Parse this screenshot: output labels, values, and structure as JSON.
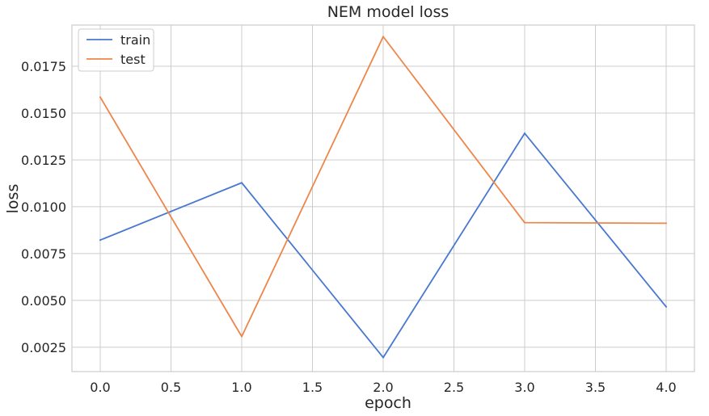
{
  "chart_data": {
    "type": "line",
    "title": "NEM model loss",
    "xlabel": "epoch",
    "ylabel": "loss",
    "x": [
      0,
      1,
      2,
      3,
      4
    ],
    "xlim": [
      -0.2,
      4.2
    ],
    "ylim": [
      0.0012,
      0.0197
    ],
    "xticks": [
      "0.0",
      "0.5",
      "1.0",
      "1.5",
      "2.0",
      "2.5",
      "3.0",
      "3.5",
      "4.0"
    ],
    "yticks": [
      "0.0025",
      "0.0050",
      "0.0075",
      "0.0100",
      "0.0125",
      "0.0150",
      "0.0175"
    ],
    "grid": true,
    "legend_position": "top-left",
    "series": [
      {
        "name": "train",
        "color": "#4878d0",
        "values": [
          0.00822,
          0.01128,
          0.00195,
          0.01392,
          0.00466
        ]
      },
      {
        "name": "test",
        "color": "#ee854a",
        "values": [
          0.01585,
          0.00307,
          0.01908,
          0.00915,
          0.00912
        ]
      }
    ]
  }
}
